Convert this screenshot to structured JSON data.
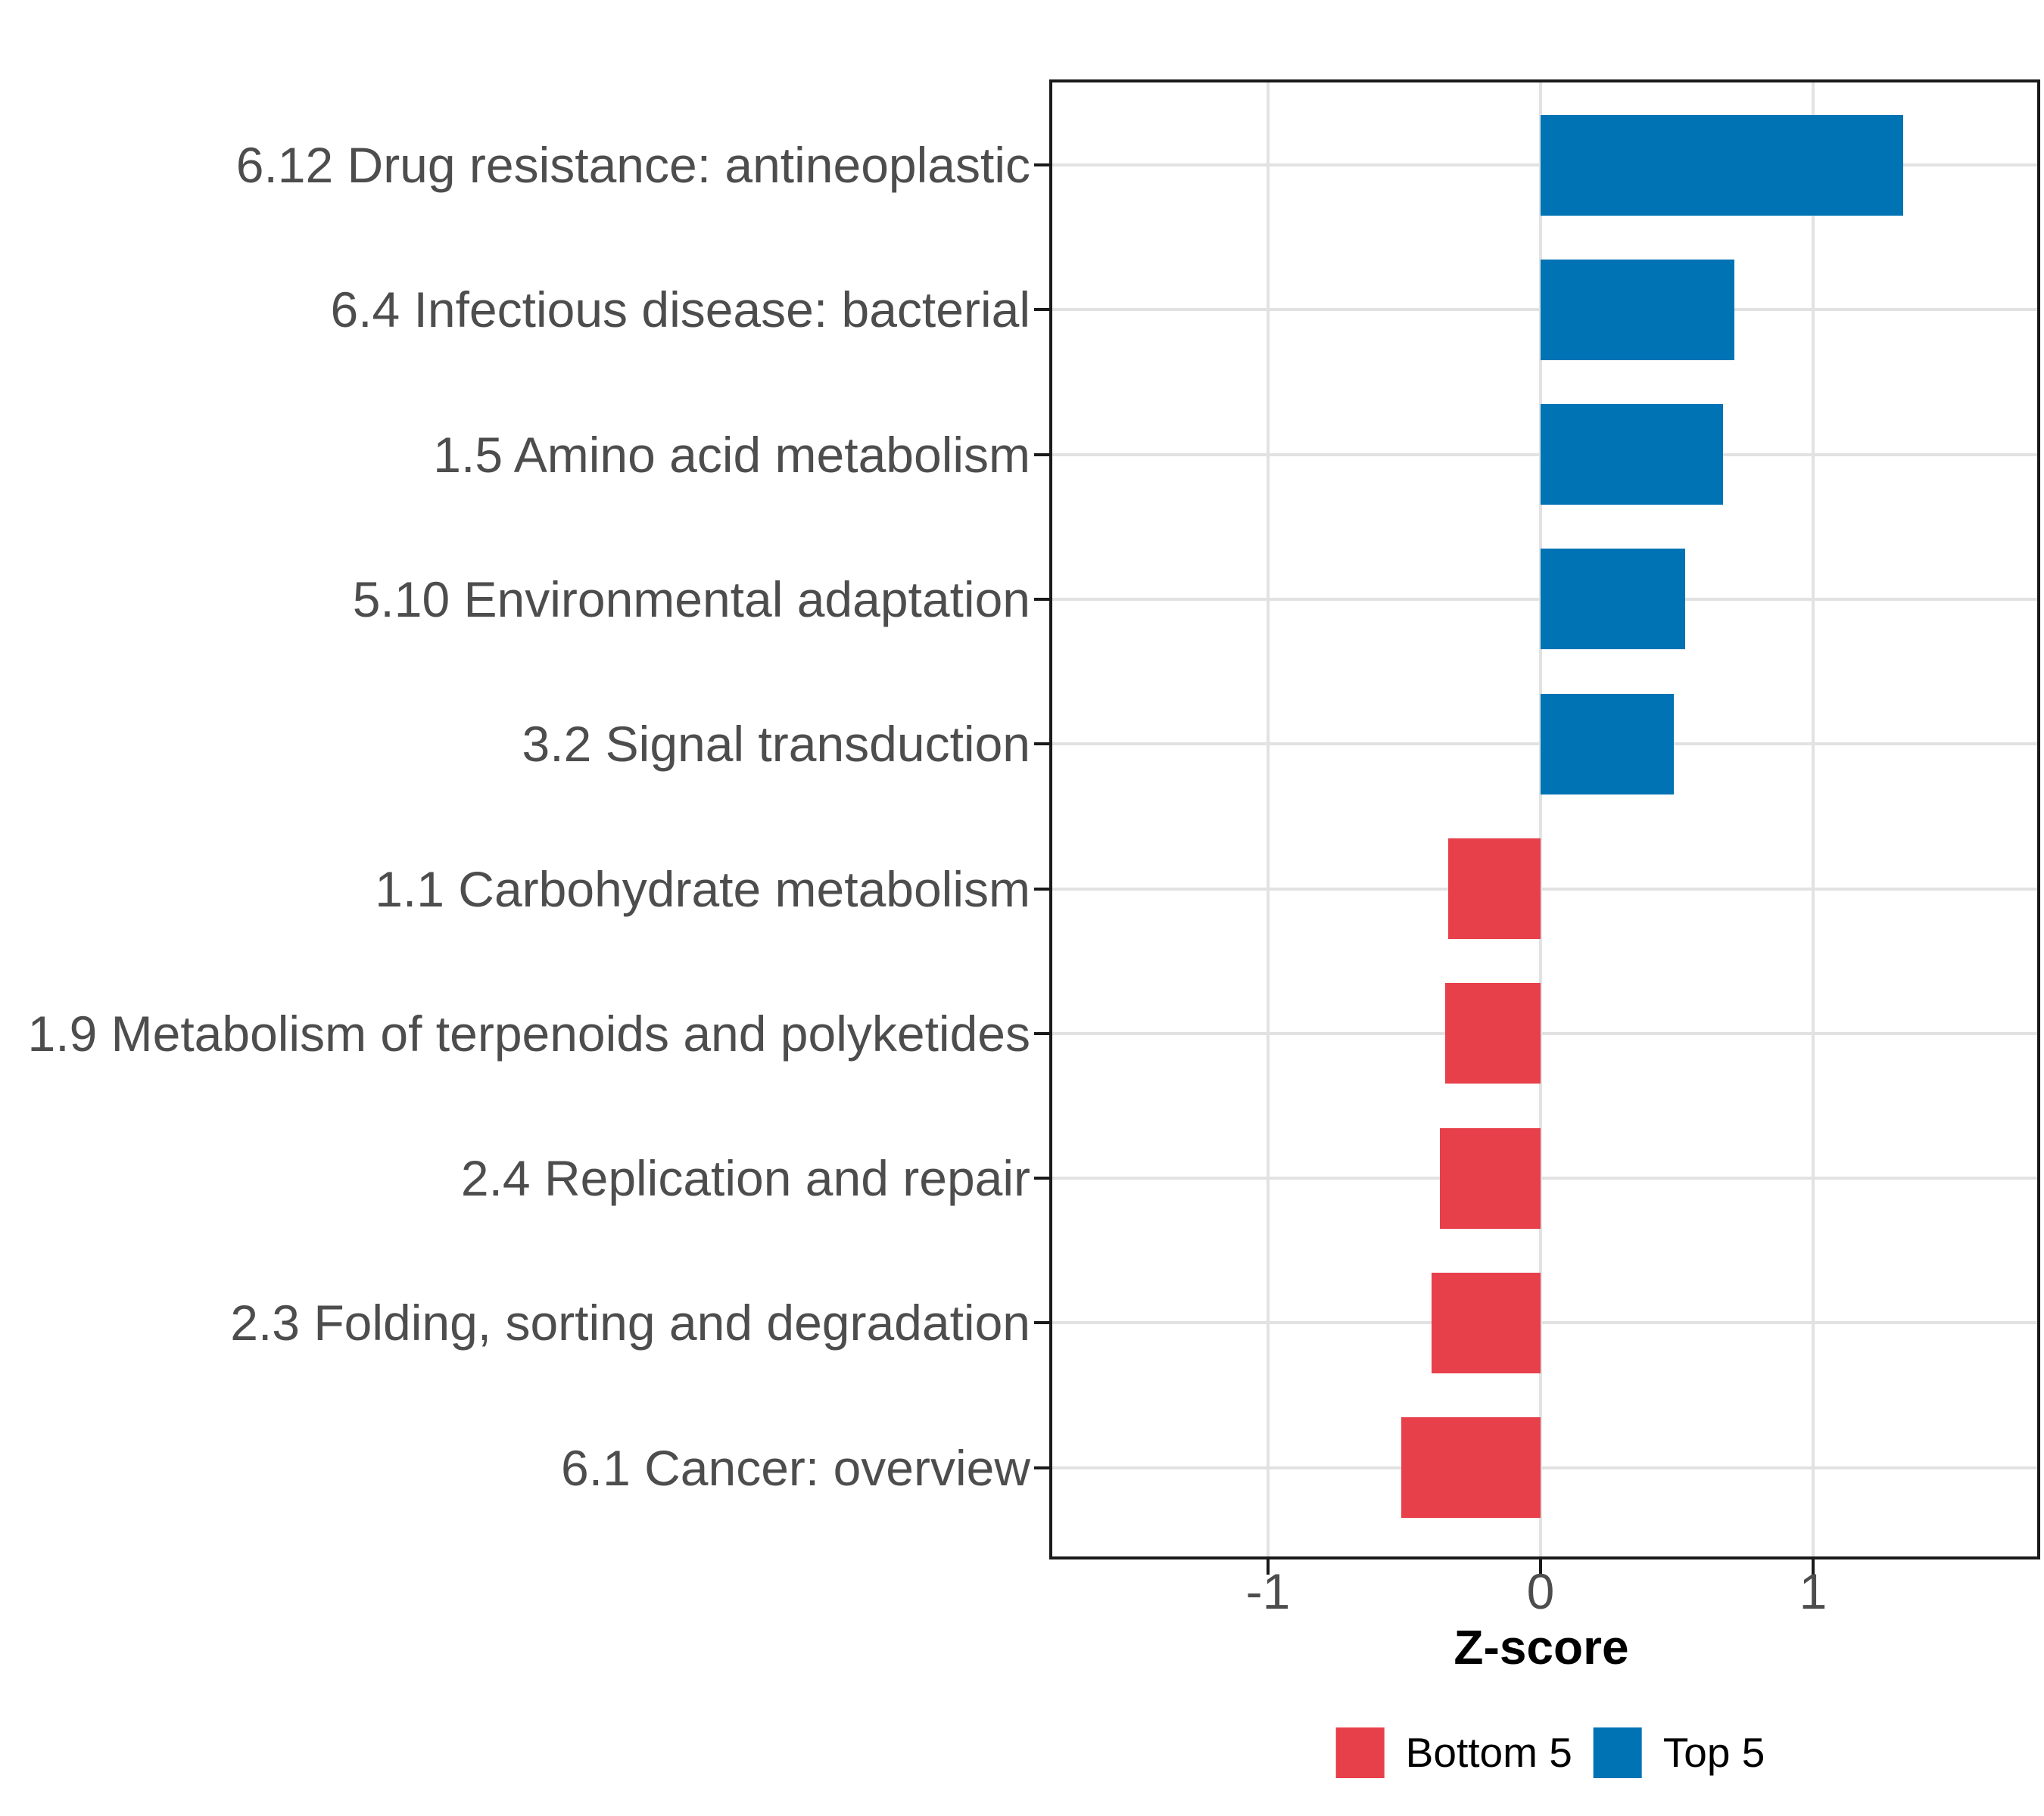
{
  "chart_data": {
    "type": "bar",
    "orientation": "horizontal",
    "title": "",
    "xlabel": "Z-score",
    "ylabel": "",
    "xlim": [
      -1.8,
      1.8
    ],
    "xticks": [
      -1,
      0,
      1
    ],
    "xtick_labels": [
      "-1",
      "0",
      "1"
    ],
    "grid": "major-only",
    "legend_position": "bottom",
    "categories": [
      "6.12 Drug resistance: antineoplastic",
      "6.4 Infectious disease: bacterial",
      "1.5 Amino acid metabolism",
      "5.10 Environmental adaptation",
      "3.2 Signal transduction",
      "1.1 Carbohydrate metabolism",
      "1.9 Metabolism of terpenoids and polyketides",
      "2.4 Replication and repair",
      "2.3 Folding, sorting and degradation",
      "6.1 Cancer: overview"
    ],
    "values": [
      1.33,
      0.71,
      0.67,
      0.53,
      0.49,
      -0.34,
      -0.35,
      -0.37,
      -0.4,
      -0.51
    ],
    "groups": [
      "Top 5",
      "Top 5",
      "Top 5",
      "Top 5",
      "Top 5",
      "Bottom 5",
      "Bottom 5",
      "Bottom 5",
      "Bottom 5",
      "Bottom 5"
    ],
    "colors": {
      "Top 5": "#0073B4",
      "Bottom 5": "#E7404B"
    },
    "legend": [
      {
        "label": "Bottom 5",
        "color": "#E7404B"
      },
      {
        "label": "Top 5",
        "color": "#0073B4"
      }
    ],
    "axis_text_color": "#4d4d4d",
    "gridline_color": "#e2e2e2",
    "panel_border_color": "#1a1a1a"
  }
}
